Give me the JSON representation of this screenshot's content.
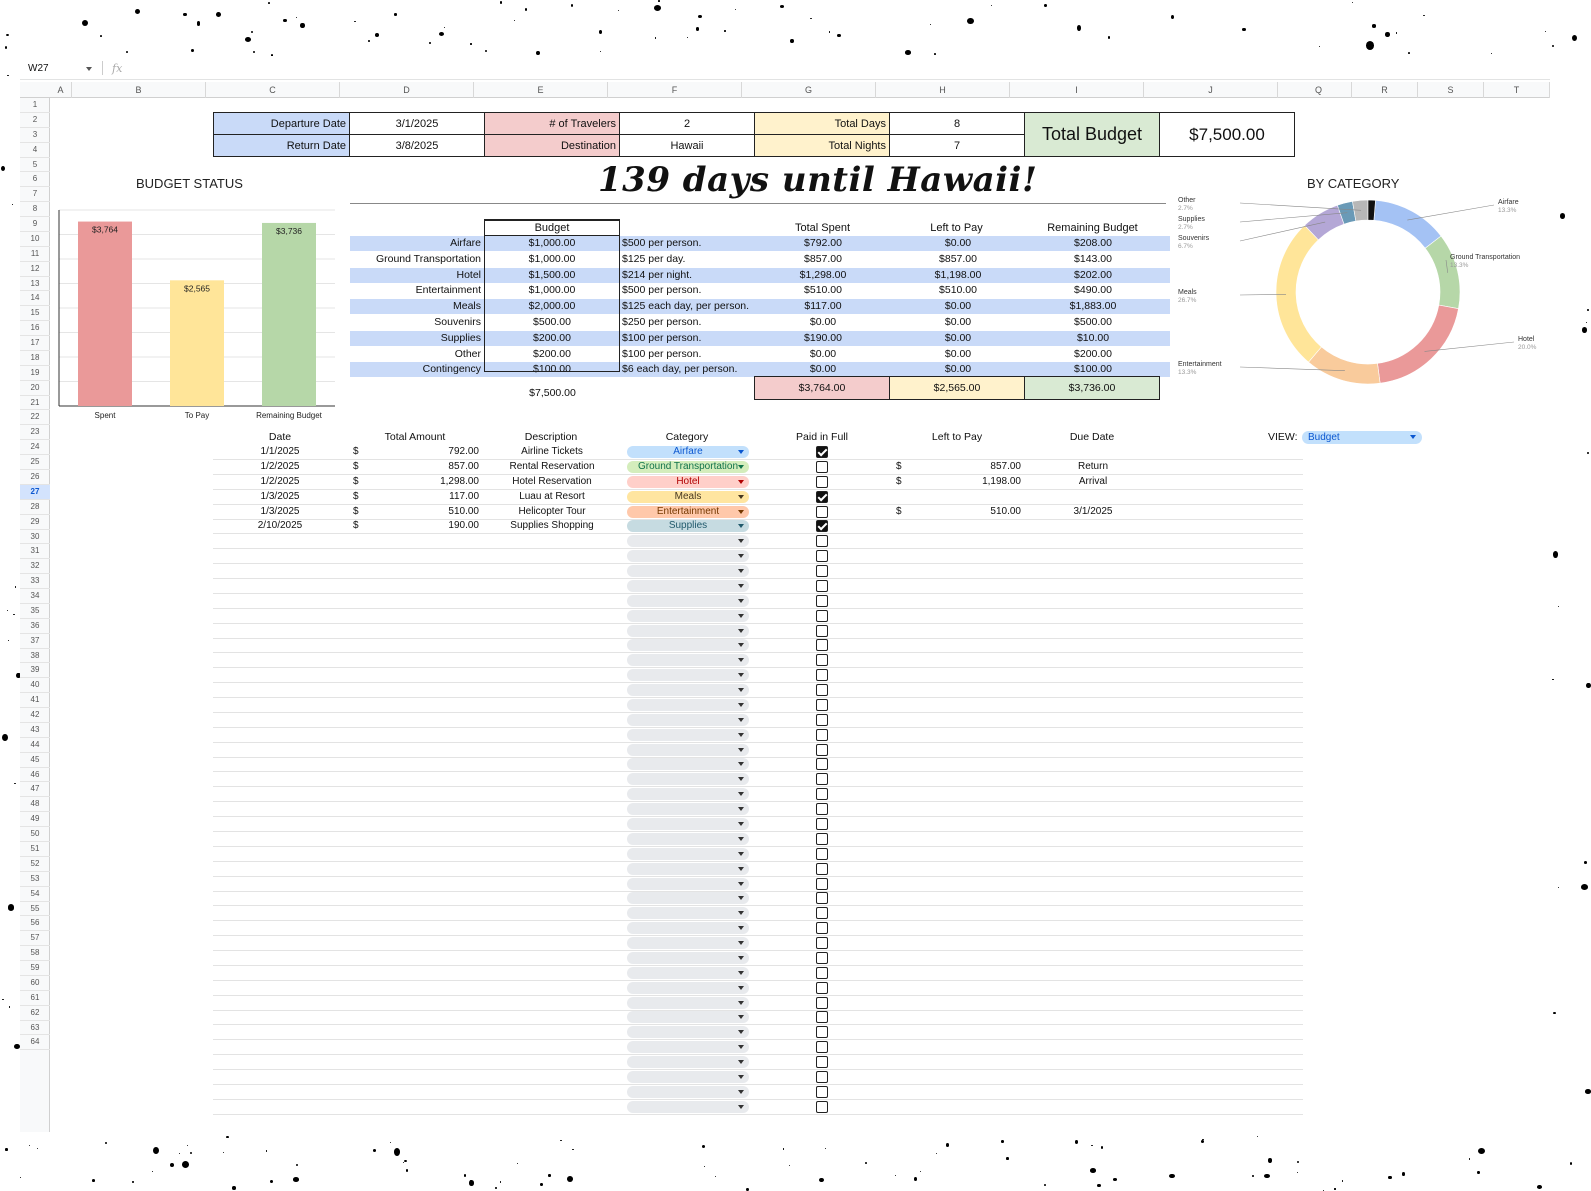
{
  "toolbar": {
    "cell_ref": "W27",
    "fx_label": "fx"
  },
  "columns": [
    "A",
    "B",
    "C",
    "D",
    "E",
    "F",
    "G",
    "H",
    "I",
    "J",
    "Q",
    "R",
    "S",
    "T"
  ],
  "trip": {
    "departure_label": "Departure Date",
    "departure_value": "3/1/2025",
    "return_label": "Return Date",
    "return_value": "3/8/2025",
    "travelers_label": "# of Travelers",
    "travelers_value": "2",
    "destination_label": "Destination",
    "destination_value": "Hawaii",
    "total_days_label": "Total Days",
    "total_days_value": "8",
    "total_nights_label": "Total Nights",
    "total_nights_value": "7",
    "total_budget_label": "Total Budget",
    "total_budget_value": "$7,500.00"
  },
  "countdown": "139 days until Hawaii!",
  "budget_status": {
    "title": "BUDGET STATUS",
    "chart_data": {
      "type": "bar",
      "categories": [
        "Spent",
        "To Pay",
        "Remaining Budget"
      ],
      "values": [
        3764,
        2565,
        3736
      ],
      "labels": [
        "$3,764",
        "$2,565",
        "$3,736"
      ],
      "colors": [
        "#ea9999",
        "#ffe599",
        "#b6d7a8"
      ],
      "ylim": [
        0,
        4000
      ]
    }
  },
  "by_category": {
    "title": "BY CATEGORY",
    "chart_data": {
      "type": "pie",
      "slices": [
        {
          "name": "Airfare",
          "value": 13.3,
          "label": "13.3%",
          "color": "#a4c2f4"
        },
        {
          "name": "Ground Transportation",
          "value": 13.3,
          "label": "13.3%",
          "color": "#b6d7a8"
        },
        {
          "name": "Hotel",
          "value": 20.0,
          "label": "20.0%",
          "color": "#ea9999"
        },
        {
          "name": "Entertainment",
          "value": 13.3,
          "label": "13.3%",
          "color": "#f9cb9c"
        },
        {
          "name": "Meals",
          "value": 26.7,
          "label": "26.7%",
          "color": "#ffe599"
        },
        {
          "name": "Souvenirs",
          "value": 6.7,
          "label": "6.7%",
          "color": "#b4a7d6"
        },
        {
          "name": "Supplies",
          "value": 2.7,
          "label": "2.7%",
          "color": "#6a9ab7"
        },
        {
          "name": "Other",
          "value": 2.7,
          "label": "2.7%",
          "color": "#b7b7b7"
        },
        {
          "name": "Contingency",
          "value": 1.3,
          "label": "",
          "color": "#111111"
        }
      ]
    }
  },
  "budget_table": {
    "headers": {
      "budget": "Budget",
      "total_spent": "Total Spent",
      "left_to_pay": "Left to Pay",
      "remaining": "Remaining Budget"
    },
    "rows": [
      {
        "category": "Airfare",
        "budget": "$1,000.00",
        "note": "$500 per person.",
        "spent": "$792.00",
        "left": "$0.00",
        "remaining": "$208.00"
      },
      {
        "category": "Ground Transportation",
        "budget": "$1,000.00",
        "note": "$125 per day.",
        "spent": "$857.00",
        "left": "$857.00",
        "remaining": "$143.00"
      },
      {
        "category": "Hotel",
        "budget": "$1,500.00",
        "note": "$214 per night.",
        "spent": "$1,298.00",
        "left": "$1,198.00",
        "remaining": "$202.00"
      },
      {
        "category": "Entertainment",
        "budget": "$1,000.00",
        "note": "$500 per person.",
        "spent": "$510.00",
        "left": "$510.00",
        "remaining": "$490.00"
      },
      {
        "category": "Meals",
        "budget": "$2,000.00",
        "note": "$125 each day, per person.",
        "spent": "$117.00",
        "left": "$0.00",
        "remaining": "$1,883.00"
      },
      {
        "category": "Souvenirs",
        "budget": "$500.00",
        "note": "$250 per person.",
        "spent": "$0.00",
        "left": "$0.00",
        "remaining": "$500.00"
      },
      {
        "category": "Supplies",
        "budget": "$200.00",
        "note": "$100 per person.",
        "spent": "$190.00",
        "left": "$0.00",
        "remaining": "$10.00"
      },
      {
        "category": "Other",
        "budget": "$200.00",
        "note": "$100 per person.",
        "spent": "$0.00",
        "left": "$0.00",
        "remaining": "$200.00"
      },
      {
        "category": "Contingency",
        "budget": "$100.00",
        "note": "$6 each day, per person.",
        "spent": "$0.00",
        "left": "$0.00",
        "remaining": "$100.00"
      }
    ],
    "totals": {
      "budget": "$7,500.00",
      "spent": "$3,764.00",
      "left": "$2,565.00",
      "remaining": "$3,736.00"
    }
  },
  "ledger": {
    "headers": {
      "date": "Date",
      "amount": "Total Amount",
      "description": "Description",
      "category": "Category",
      "paid": "Paid in Full",
      "left": "Left to Pay",
      "due": "Due Date"
    },
    "view_label": "VIEW:",
    "view_value": "Budget",
    "currency": "$",
    "rows": [
      {
        "date": "1/1/2025",
        "amount": "792.00",
        "description": "Airline Tickets",
        "category": "Airfare",
        "paid": true,
        "left": "",
        "due": ""
      },
      {
        "date": "1/2/2025",
        "amount": "857.00",
        "description": "Rental Reservation",
        "category": "Ground Transportation",
        "paid": false,
        "left": "857.00",
        "due": "Return"
      },
      {
        "date": "1/2/2025",
        "amount": "1,298.00",
        "description": "Hotel Reservation",
        "category": "Hotel",
        "paid": false,
        "left": "1,198.00",
        "due": "Arrival"
      },
      {
        "date": "1/3/2025",
        "amount": "117.00",
        "description": "Luau at Resort",
        "category": "Meals",
        "paid": true,
        "left": "",
        "due": ""
      },
      {
        "date": "1/3/2025",
        "amount": "510.00",
        "description": "Helicopter Tour",
        "category": "Entertainment",
        "paid": false,
        "left": "510.00",
        "due": "3/1/2025"
      },
      {
        "date": "2/10/2025",
        "amount": "190.00",
        "description": "Supplies Shopping",
        "category": "Supplies",
        "paid": true,
        "left": "",
        "due": ""
      }
    ],
    "chip_colors": {
      "Airfare": {
        "bg": "#c2e0fc",
        "fg": "#0b57d0"
      },
      "Ground Transportation": {
        "bg": "#d4edbc",
        "fg": "#11734b"
      },
      "Hotel": {
        "bg": "#ffcfc9",
        "fg": "#b10202"
      },
      "Meals": {
        "bg": "#ffe5a0",
        "fg": "#473821"
      },
      "Entertainment": {
        "bg": "#ffc8aa",
        "fg": "#753800"
      },
      "Supplies": {
        "bg": "#c6dbe1",
        "fg": "#215a6c"
      }
    }
  },
  "row_numbers": {
    "first": 1,
    "last": 64,
    "selected": 27
  }
}
